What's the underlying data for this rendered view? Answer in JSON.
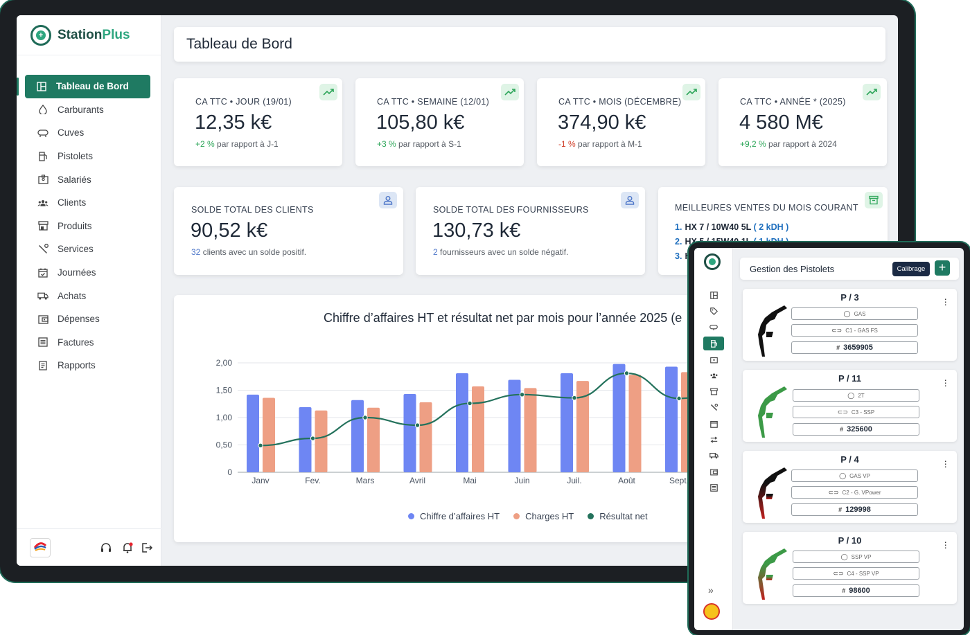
{
  "brand": {
    "name_a": "Station",
    "name_b": "Plus"
  },
  "nav": [
    {
      "label": "Tableau de Bord",
      "icon": "dashboard-icon"
    },
    {
      "label": "Carburants",
      "icon": "drop-icon"
    },
    {
      "label": "Cuves",
      "icon": "tank-icon"
    },
    {
      "label": "Pistolets",
      "icon": "fuel-pump-icon"
    },
    {
      "label": "Salariés",
      "icon": "badge-icon"
    },
    {
      "label": "Clients",
      "icon": "users-icon"
    },
    {
      "label": "Produits",
      "icon": "store-icon"
    },
    {
      "label": "Services",
      "icon": "wrench-icon"
    },
    {
      "label": "Journées",
      "icon": "calendar-icon"
    },
    {
      "label": "Achats",
      "icon": "truck-icon"
    },
    {
      "label": "Dépenses",
      "icon": "wallet-icon"
    },
    {
      "label": "Factures",
      "icon": "invoice-icon"
    },
    {
      "label": "Rapports",
      "icon": "report-icon"
    }
  ],
  "page_title": "Tableau de Bord",
  "kpis": [
    {
      "label": "CA TTC • JOUR (19/01)",
      "value": "12,35 k€",
      "delta": "+2 %",
      "delta_type": "pos",
      "suffix": " par rapport à J-1"
    },
    {
      "label": "CA TTC • SEMAINE (12/01)",
      "value": "105,80 k€",
      "delta": "+3 %",
      "delta_type": "pos",
      "suffix": " par rapport à S-1"
    },
    {
      "label": "CA TTC • MOIS (DÉCEMBRE)",
      "value": "374,90 k€",
      "delta": "-1 %",
      "delta_type": "neg",
      "suffix": " par rapport à M-1"
    },
    {
      "label": "CA TTC • ANNÉE * (2025)",
      "value": "4 580 M€",
      "delta": "+9,2 %",
      "delta_type": "pos",
      "suffix": " par rapport à 2024"
    }
  ],
  "balances": [
    {
      "label": "SOLDE TOTAL DES CLIENTS",
      "value": "90,52 k€",
      "count": "32",
      "suffix": " clients avec un solde positif."
    },
    {
      "label": "SOLDE TOTAL DES FOURNISSEURS",
      "value": "130,73 k€",
      "count": "2",
      "suffix": " fournisseurs avec un solde négatif."
    }
  ],
  "best_sales": {
    "label": "MEILLEURES VENTES DU MOIS COURANT",
    "items": [
      {
        "num": "1.",
        "name": "HX 7 / 10W40 5L",
        "qty": "( 2 kDH )"
      },
      {
        "num": "2.",
        "name": "HX 5 / 15W40 1L",
        "qty": "( 1 kDH )"
      },
      {
        "num": "3.",
        "name": "H",
        "qty": ""
      }
    ]
  },
  "chart_data": {
    "type": "bar",
    "title": "Chiffre d’affaires HT et résultat net par mois pour l’année 2025 (e",
    "categories": [
      "Janv",
      "Fev.",
      "Mars",
      "Avril",
      "Mai",
      "Juin",
      "Juil.",
      "Août",
      "Sept."
    ],
    "y_ticks": [
      "2,00",
      "1,50",
      "1,00",
      "0,50",
      "0"
    ],
    "ylim": [
      0,
      2
    ],
    "grid": true,
    "legend_position": "bottom",
    "series": [
      {
        "name": "Chiffre d’affaires HT",
        "type": "bar",
        "color": "#6e86f3",
        "values": [
          1.42,
          1.19,
          1.32,
          1.43,
          1.81,
          1.69,
          1.81,
          1.98,
          1.93
        ]
      },
      {
        "name": "Charges HT",
        "type": "bar",
        "color": "#ee9f84",
        "values": [
          1.36,
          1.13,
          1.18,
          1.28,
          1.57,
          1.54,
          1.67,
          1.78,
          1.83
        ]
      },
      {
        "name": "Résultat net",
        "type": "line",
        "color": "#24725c",
        "values": [
          0.49,
          0.62,
          1.0,
          0.86,
          1.26,
          1.42,
          1.36,
          1.81,
          1.35
        ]
      }
    ]
  },
  "tablet": {
    "title": "Gestion des Pistolets",
    "calibrage": "Calibrage",
    "add": "+",
    "collapse": "»",
    "pistolets": [
      {
        "name": "P / 3",
        "fuel": "GAS",
        "tank": "C1 - GAS FS",
        "counter": "3659905",
        "color_top": "#111111",
        "color_bottom": "#111111"
      },
      {
        "name": "P / 11",
        "fuel": "2T",
        "tank": "C3 - SSP",
        "counter": "325600",
        "color_top": "#3c9a47",
        "color_bottom": "#3c9a47"
      },
      {
        "name": "P / 4",
        "fuel": "GAS VP",
        "tank": "C2 - G. VPower",
        "counter": "129998",
        "color_top": "#111111",
        "color_bottom": "#c0201e"
      },
      {
        "name": "P / 10",
        "fuel": "SSP VP",
        "tank": "C4 - SSP VP",
        "counter": "98600",
        "color_top": "#3c9a47",
        "color_bottom": "#c0201e"
      }
    ]
  }
}
